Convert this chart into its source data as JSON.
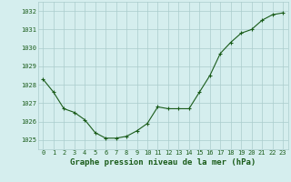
{
  "x": [
    0,
    1,
    2,
    3,
    4,
    5,
    6,
    7,
    8,
    9,
    10,
    11,
    12,
    13,
    14,
    15,
    16,
    17,
    18,
    19,
    20,
    21,
    22,
    23
  ],
  "y": [
    1028.3,
    1027.6,
    1026.7,
    1026.5,
    1026.1,
    1025.4,
    1025.1,
    1025.1,
    1025.2,
    1025.5,
    1025.9,
    1026.8,
    1026.7,
    1026.7,
    1026.7,
    1027.6,
    1028.5,
    1029.7,
    1030.3,
    1030.8,
    1031.0,
    1031.5,
    1031.8,
    1031.9
  ],
  "line_color": "#1a5c1a",
  "marker_color": "#1a5c1a",
  "bg_color": "#d5eeee",
  "grid_color": "#aacccc",
  "xlabel": "Graphe pression niveau de la mer (hPa)",
  "xlabel_color": "#1a5c1a",
  "tick_color": "#1a5c1a",
  "ylim": [
    1024.5,
    1032.5
  ],
  "yticks": [
    1025,
    1026,
    1027,
    1028,
    1029,
    1030,
    1031,
    1032
  ],
  "xticks": [
    0,
    1,
    2,
    3,
    4,
    5,
    6,
    7,
    8,
    9,
    10,
    11,
    12,
    13,
    14,
    15,
    16,
    17,
    18,
    19,
    20,
    21,
    22,
    23
  ],
  "xtick_labels": [
    "0",
    "1",
    "2",
    "3",
    "4",
    "5",
    "6",
    "7",
    "8",
    "9",
    "10",
    "11",
    "12",
    "13",
    "14",
    "15",
    "16",
    "17",
    "18",
    "19",
    "20",
    "21",
    "22",
    "23"
  ],
  "xlabel_fontsize": 6.5,
  "tick_fontsize": 5.0
}
